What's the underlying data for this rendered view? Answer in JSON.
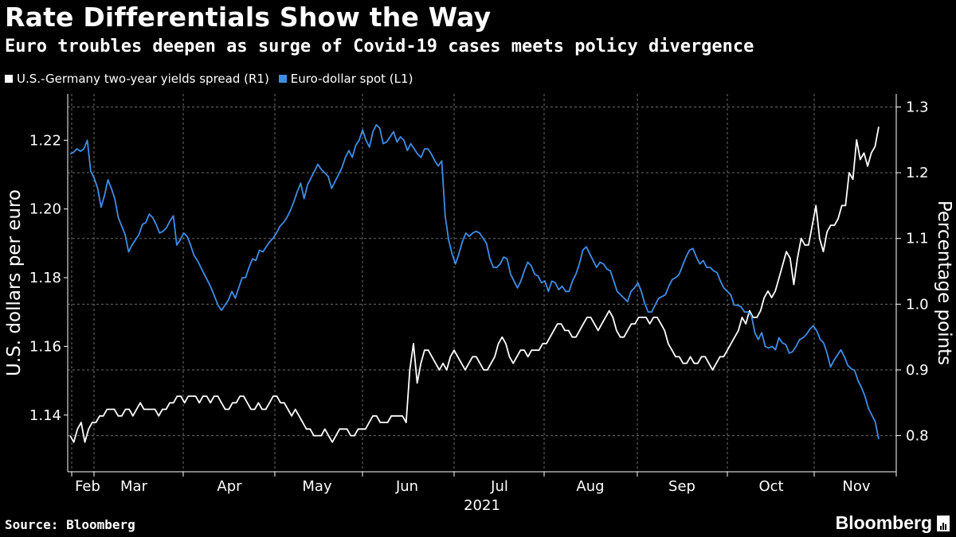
{
  "header": {
    "title": "Rate Differentials Show the Way",
    "subtitle": "Euro troubles deepen as surge of Covid-19 cases meets policy divergence"
  },
  "legend": [
    {
      "label": "U.S.-Germany two-year yields spread (R1)",
      "color": "#ffffff"
    },
    {
      "label": "Euro-dollar spot (L1)",
      "color": "#3f8ee6"
    }
  ],
  "footer": {
    "source": "Source: Bloomberg",
    "brand": "Bloomberg"
  },
  "chart_data": {
    "type": "line",
    "x_axis": {
      "ticks": [
        "Feb",
        "Mar",
        "Apr",
        "May",
        "Jun",
        "Jul",
        "Aug",
        "Sep",
        "Oct",
        "Nov"
      ],
      "year_label": "2021"
    },
    "y_left": {
      "label": "U.S. dollars per euro",
      "range": [
        1.1235,
        1.2335
      ],
      "ticks": [
        1.14,
        1.16,
        1.18,
        1.2,
        1.22
      ]
    },
    "y_right": {
      "label": "Percentage points",
      "range": [
        0.745,
        1.32
      ],
      "ticks": [
        0.8,
        0.9,
        1.0,
        1.1,
        1.2,
        1.3
      ]
    },
    "grid": true,
    "legend_position": "top-left",
    "series": [
      {
        "name": "U.S.-Germany two-year yields spread (R1)",
        "axis": "right",
        "color": "#ffffff",
        "values": [
          0.8,
          0.79,
          0.81,
          0.82,
          0.79,
          0.81,
          0.82,
          0.82,
          0.83,
          0.83,
          0.84,
          0.84,
          0.84,
          0.83,
          0.83,
          0.84,
          0.84,
          0.83,
          0.84,
          0.85,
          0.84,
          0.84,
          0.84,
          0.84,
          0.83,
          0.84,
          0.84,
          0.85,
          0.85,
          0.86,
          0.86,
          0.85,
          0.86,
          0.86,
          0.86,
          0.85,
          0.86,
          0.86,
          0.85,
          0.86,
          0.86,
          0.85,
          0.84,
          0.84,
          0.85,
          0.85,
          0.86,
          0.86,
          0.85,
          0.84,
          0.84,
          0.85,
          0.84,
          0.84,
          0.85,
          0.86,
          0.86,
          0.85,
          0.85,
          0.84,
          0.83,
          0.84,
          0.83,
          0.82,
          0.81,
          0.81,
          0.8,
          0.8,
          0.8,
          0.81,
          0.8,
          0.79,
          0.8,
          0.81,
          0.81,
          0.81,
          0.8,
          0.8,
          0.81,
          0.81,
          0.81,
          0.82,
          0.83,
          0.83,
          0.82,
          0.82,
          0.82,
          0.83,
          0.83,
          0.83,
          0.83,
          0.82,
          0.9,
          0.94,
          0.88,
          0.91,
          0.93,
          0.93,
          0.92,
          0.91,
          0.9,
          0.91,
          0.9,
          0.92,
          0.93,
          0.92,
          0.91,
          0.9,
          0.91,
          0.92,
          0.92,
          0.91,
          0.9,
          0.9,
          0.91,
          0.92,
          0.94,
          0.95,
          0.94,
          0.92,
          0.91,
          0.92,
          0.93,
          0.93,
          0.92,
          0.93,
          0.93,
          0.93,
          0.94,
          0.94,
          0.95,
          0.96,
          0.97,
          0.97,
          0.96,
          0.96,
          0.95,
          0.95,
          0.96,
          0.97,
          0.98,
          0.98,
          0.97,
          0.96,
          0.97,
          0.98,
          0.99,
          0.98,
          0.96,
          0.95,
          0.95,
          0.96,
          0.97,
          0.97,
          0.98,
          0.98,
          0.98,
          0.97,
          0.98,
          0.98,
          0.97,
          0.96,
          0.94,
          0.93,
          0.92,
          0.92,
          0.91,
          0.91,
          0.92,
          0.91,
          0.91,
          0.92,
          0.92,
          0.91,
          0.9,
          0.91,
          0.92,
          0.92,
          0.93,
          0.94,
          0.95,
          0.96,
          0.98,
          0.97,
          0.99,
          0.98,
          0.98,
          0.99,
          1.01,
          1.02,
          1.01,
          1.02,
          1.04,
          1.06,
          1.08,
          1.07,
          1.03,
          1.07,
          1.1,
          1.09,
          1.09,
          1.12,
          1.15,
          1.1,
          1.08,
          1.11,
          1.12,
          1.12,
          1.13,
          1.15,
          1.15,
          1.2,
          1.19,
          1.25,
          1.22,
          1.23,
          1.21,
          1.23,
          1.24,
          1.27
        ]
      },
      {
        "name": "Euro-dollar spot (L1)",
        "axis": "left",
        "color": "#3f8ee6",
        "values": [
          1.216,
          1.2165,
          1.2175,
          1.2168,
          1.2175,
          1.22,
          1.211,
          1.209,
          1.206,
          1.2005,
          1.204,
          1.2085,
          1.206,
          1.203,
          1.1975,
          1.195,
          1.1925,
          1.1875,
          1.1895,
          1.191,
          1.1925,
          1.1955,
          1.196,
          1.1985,
          1.1975,
          1.1955,
          1.193,
          1.1935,
          1.1945,
          1.1965,
          1.198,
          1.1895,
          1.191,
          1.193,
          1.192,
          1.1895,
          1.1865,
          1.185,
          1.183,
          1.181,
          1.179,
          1.177,
          1.1745,
          1.172,
          1.1705,
          1.172,
          1.1735,
          1.176,
          1.174,
          1.177,
          1.18,
          1.18,
          1.183,
          1.1855,
          1.185,
          1.188,
          1.1875,
          1.189,
          1.1905,
          1.1915,
          1.193,
          1.195,
          1.196,
          1.1975,
          1.1995,
          1.202,
          1.205,
          1.2075,
          1.203,
          1.207,
          1.209,
          1.211,
          1.213,
          1.2115,
          1.2105,
          1.2095,
          1.206,
          1.208,
          1.21,
          1.212,
          1.215,
          1.217,
          1.215,
          1.2185,
          1.22,
          1.223,
          1.22,
          1.218,
          1.2225,
          1.2245,
          1.2235,
          1.219,
          1.2195,
          1.221,
          1.2225,
          1.2195,
          1.221,
          1.22,
          1.217,
          1.219,
          1.2175,
          1.216,
          1.215,
          1.2175,
          1.2175,
          1.216,
          1.214,
          1.2125,
          1.214,
          1.198,
          1.191,
          1.187,
          1.184,
          1.187,
          1.1905,
          1.193,
          1.192,
          1.193,
          1.1935,
          1.193,
          1.1915,
          1.19,
          1.1855,
          1.183,
          1.183,
          1.184,
          1.186,
          1.1855,
          1.181,
          1.179,
          1.177,
          1.179,
          1.182,
          1.1845,
          1.1835,
          1.181,
          1.1805,
          1.1785,
          1.179,
          1.176,
          1.179,
          1.1785,
          1.1765,
          1.1775,
          1.176,
          1.176,
          1.179,
          1.181,
          1.184,
          1.188,
          1.189,
          1.187,
          1.185,
          1.183,
          1.1845,
          1.184,
          1.1825,
          1.182,
          1.179,
          1.176,
          1.175,
          1.174,
          1.173,
          1.176,
          1.177,
          1.1785,
          1.176,
          1.1725,
          1.17,
          1.17,
          1.172,
          1.174,
          1.1745,
          1.175,
          1.1775,
          1.1795,
          1.18,
          1.181,
          1.1835,
          1.186,
          1.188,
          1.1885,
          1.186,
          1.184,
          1.185,
          1.183,
          1.183,
          1.182,
          1.1815,
          1.179,
          1.177,
          1.176,
          1.175,
          1.172,
          1.172,
          1.1715,
          1.17,
          1.17,
          1.169,
          1.164,
          1.162,
          1.164,
          1.16,
          1.1595,
          1.16,
          1.159,
          1.1625,
          1.161,
          1.1605,
          1.158,
          1.1585,
          1.16,
          1.162,
          1.1625,
          1.1635,
          1.165,
          1.166,
          1.1645,
          1.162,
          1.161,
          1.158,
          1.154,
          1.156,
          1.1575,
          1.159,
          1.157,
          1.1545,
          1.1535,
          1.153,
          1.15,
          1.148,
          1.1455,
          1.142,
          1.14,
          1.138,
          1.133
        ]
      }
    ]
  }
}
